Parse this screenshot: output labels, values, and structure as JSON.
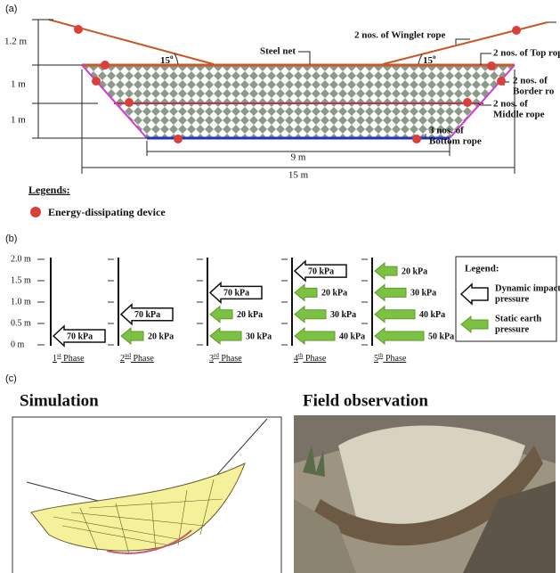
{
  "panel_a": {
    "tag": "(a)",
    "dimensions": {
      "winglet_height": "1.2 m",
      "upper_height": "1 m",
      "lower_height": "1 m",
      "bottom_width": "9 m",
      "top_width": "15 m"
    },
    "angles": [
      {
        "number": "15",
        "mark": "o"
      },
      {
        "number": "15",
        "mark": "o"
      }
    ],
    "labels": {
      "steel_net": "Steel net",
      "winglet_rope": "2 nos. of Winglet rope",
      "top_rope": "2 nos. of Top rop",
      "border_rope": [
        "2 nos. of",
        "Border ro"
      ],
      "middle_rope": [
        "2 nos. of",
        "Middle rope"
      ],
      "bottom_rope": [
        "3 nos. of",
        "Bottom rope"
      ]
    },
    "legend": {
      "title": "Legends:",
      "item": "Energy-dissipating device"
    }
  },
  "panel_b": {
    "tag": "(b)",
    "heights": [
      "2.0 m",
      "1.5 m",
      "1.0 m",
      "0.5 m",
      "0 m"
    ],
    "phases": [
      {
        "ordinal": "1",
        "suffix": "st",
        "word": "Phase",
        "arrows": [
          {
            "kind": "dynamic",
            "label": "70 kPa"
          }
        ]
      },
      {
        "ordinal": "2",
        "suffix": "nd",
        "word": "Phase",
        "arrows": [
          {
            "kind": "dynamic",
            "label": "70 kPa"
          },
          {
            "kind": "static",
            "label": "20 kPa"
          }
        ]
      },
      {
        "ordinal": "3",
        "suffix": "rd",
        "word": "Phase",
        "arrows": [
          {
            "kind": "dynamic",
            "label": "70 kPa"
          },
          {
            "kind": "static",
            "label": "20 kPa"
          },
          {
            "kind": "static",
            "label": "30 kPa"
          }
        ]
      },
      {
        "ordinal": "4",
        "suffix": "th",
        "word": "Phase",
        "arrows": [
          {
            "kind": "dynamic",
            "label": "70 kPa"
          },
          {
            "kind": "static",
            "label": "20 kPa"
          },
          {
            "kind": "static",
            "label": "30 kPa"
          },
          {
            "kind": "static",
            "label": "40 kPa"
          }
        ]
      },
      {
        "ordinal": "5",
        "suffix": "th",
        "word": "Phase",
        "arrows": [
          {
            "kind": "static",
            "label": "20 kPa"
          },
          {
            "kind": "static",
            "label": "30 kPa"
          },
          {
            "kind": "static",
            "label": "40 kPa"
          },
          {
            "kind": "static",
            "label": "50 kPa"
          }
        ]
      }
    ],
    "legend": {
      "title": "Legend:",
      "items": [
        {
          "kind": "dynamic",
          "lines": [
            "Dynamic impact",
            "pressure"
          ]
        },
        {
          "kind": "static",
          "lines": [
            "Static earth",
            "pressure"
          ]
        }
      ]
    }
  },
  "panel_c": {
    "tag": "(c)",
    "simulation_title": "Simulation",
    "field_title": "Field observation"
  }
}
